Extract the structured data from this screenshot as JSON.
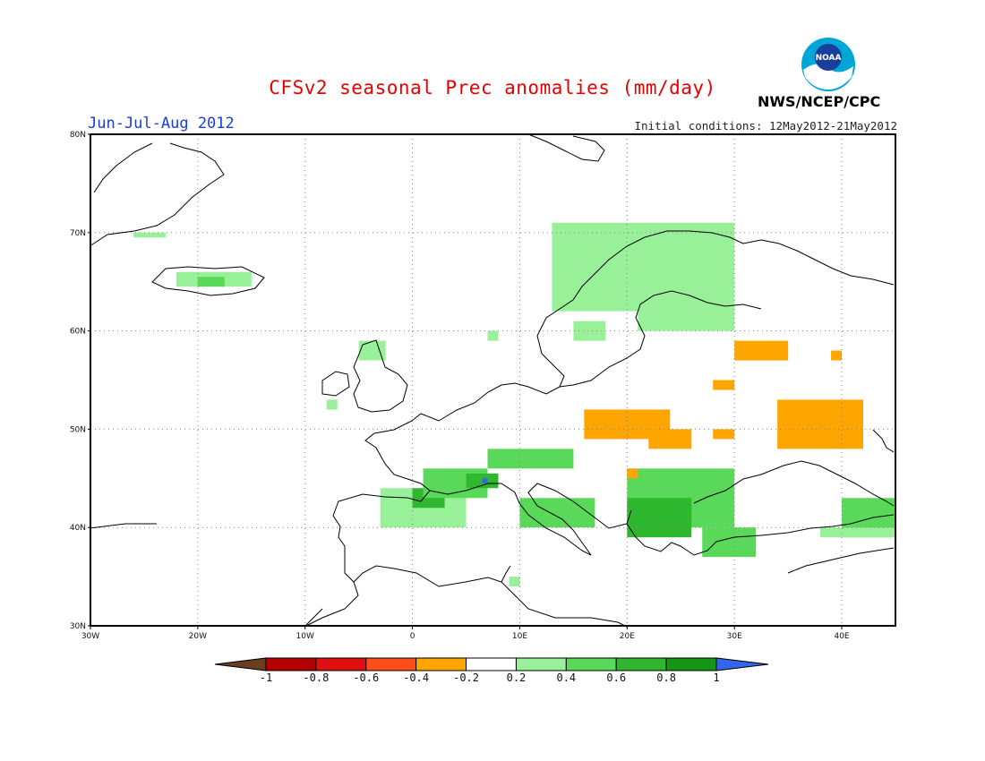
{
  "title": "CFSv2 seasonal Prec anomalies (mm/day)",
  "season": "Jun-Jul-Aug 2012",
  "initial_conditions": "Initial conditions: 12May2012-21May2012",
  "agency": "NWS/NCEP/CPC",
  "logo_text": "NOAA",
  "map": {
    "lon_range": [
      -30,
      45
    ],
    "lat_range": [
      30,
      80
    ],
    "lon_ticks": [
      "30W",
      "20W",
      "10W",
      "0",
      "10E",
      "20E",
      "30E",
      "40E"
    ],
    "lat_ticks": [
      "30N",
      "40N",
      "50N",
      "60N",
      "70N",
      "80N"
    ],
    "grid": "dotted"
  },
  "legend": {
    "labels": [
      "-1",
      "-0.8",
      "-0.6",
      "-0.4",
      "-0.2",
      "0.2",
      "0.4",
      "0.6",
      "0.8",
      "1"
    ],
    "colors": [
      "#6b3d1e",
      "#b30000",
      "#e01010",
      "#ff4d1a",
      "#ffa500",
      "#ffffff",
      "#98f098",
      "#5ad85a",
      "#2fb82f",
      "#149614",
      "#3366ee"
    ]
  },
  "anomalies": [
    {
      "name": "iceland-west",
      "bin": "0.2-0.4",
      "lon": [
        -26,
        -23
      ],
      "lat": [
        69.5,
        70
      ]
    },
    {
      "name": "iceland",
      "bin": "0.2-0.4",
      "lon": [
        -22,
        -15
      ],
      "lat": [
        64.5,
        66
      ]
    },
    {
      "name": "iceland-core",
      "bin": "0.4-0.6",
      "lon": [
        -20,
        -17.5
      ],
      "lat": [
        64.5,
        65.5
      ]
    },
    {
      "name": "ireland",
      "bin": "0.2-0.4",
      "lon": [
        -5,
        -2.5
      ],
      "lat": [
        57,
        59
      ]
    },
    {
      "name": "north-sea",
      "bin": "0.2-0.4",
      "lon": [
        -8,
        -7
      ],
      "lat": [
        52,
        53
      ]
    },
    {
      "name": "norway-north",
      "bin": "0.2-0.4",
      "lon": [
        13,
        30
      ],
      "lat": [
        62,
        71
      ]
    },
    {
      "name": "finland",
      "bin": "0.2-0.4",
      "lon": [
        21,
        30
      ],
      "lat": [
        60,
        65
      ]
    },
    {
      "name": "norway-south",
      "bin": "0.2-0.4",
      "lon": [
        15,
        18
      ],
      "lat": [
        59,
        61
      ]
    },
    {
      "name": "southern-norway",
      "bin": "0.2-0.4",
      "lon": [
        7,
        8
      ],
      "lat": [
        59,
        60
      ]
    },
    {
      "name": "spain",
      "bin": "0.2-0.4",
      "lon": [
        -3,
        5
      ],
      "lat": [
        40,
        44
      ]
    },
    {
      "name": "spain-core",
      "bin": "0.6-0.8",
      "lon": [
        0,
        3
      ],
      "lat": [
        42,
        44
      ]
    },
    {
      "name": "pyrenees-france",
      "bin": "0.4-0.6",
      "lon": [
        1,
        7
      ],
      "lat": [
        43,
        46
      ]
    },
    {
      "name": "alps",
      "bin": "0.4-0.6",
      "lon": [
        7,
        15
      ],
      "lat": [
        46,
        48
      ]
    },
    {
      "name": "alps-core",
      "bin": "0.6-0.8",
      "lon": [
        5,
        8
      ],
      "lat": [
        44,
        45.5
      ]
    },
    {
      "name": "liguria-max",
      "bin": ">1",
      "lon": [
        6.5,
        7
      ],
      "lat": [
        44.5,
        45
      ]
    },
    {
      "name": "italy",
      "bin": "0.4-0.6",
      "lon": [
        10,
        17
      ],
      "lat": [
        40,
        43
      ]
    },
    {
      "name": "sardinia",
      "bin": "0.2-0.4",
      "lon": [
        9,
        10
      ],
      "lat": [
        34,
        35
      ]
    },
    {
      "name": "balkans",
      "bin": "0.4-0.6",
      "lon": [
        20,
        30
      ],
      "lat": [
        40,
        46
      ]
    },
    {
      "name": "balkans-core",
      "bin": "0.6-0.8",
      "lon": [
        20,
        26
      ],
      "lat": [
        39,
        43
      ]
    },
    {
      "name": "turkey",
      "bin": "0.4-0.6",
      "lon": [
        27,
        32
      ],
      "lat": [
        37,
        40
      ]
    },
    {
      "name": "caspian",
      "bin": "0.4-0.6",
      "lon": [
        40,
        45
      ],
      "lat": [
        39,
        43
      ]
    },
    {
      "name": "anatolia-east",
      "bin": "0.2-0.4",
      "lon": [
        38,
        45
      ],
      "lat": [
        39,
        40
      ]
    },
    {
      "name": "poland",
      "bin": "-0.4--0.2",
      "lon": [
        16,
        24
      ],
      "lat": [
        49,
        52
      ]
    },
    {
      "name": "ukraine",
      "bin": "-0.4--0.2",
      "lon": [
        22,
        26
      ],
      "lat": [
        48,
        50
      ]
    },
    {
      "name": "moldova",
      "bin": "-0.4--0.2",
      "lon": [
        28,
        30
      ],
      "lat": [
        49,
        50
      ]
    },
    {
      "name": "russia-south",
      "bin": "-0.4--0.2",
      "lon": [
        34,
        42
      ],
      "lat": [
        48,
        53
      ]
    },
    {
      "name": "russia-north",
      "bin": "-0.4--0.2",
      "lon": [
        30,
        35
      ],
      "lat": [
        57,
        59
      ]
    },
    {
      "name": "russia-east",
      "bin": "-0.4--0.2",
      "lon": [
        39,
        40
      ],
      "lat": [
        57,
        58
      ]
    },
    {
      "name": "belarus",
      "bin": "-0.4--0.2",
      "lon": [
        28,
        30
      ],
      "lat": [
        54,
        55
      ]
    },
    {
      "name": "hungary",
      "bin": "-0.4--0.2",
      "lon": [
        20,
        21
      ],
      "lat": [
        45,
        46
      ]
    }
  ]
}
